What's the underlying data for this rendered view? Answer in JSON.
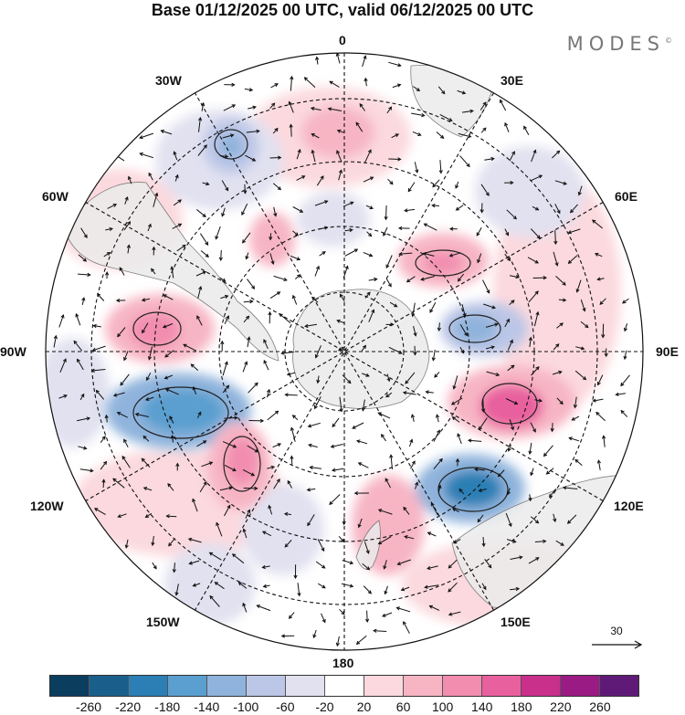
{
  "title": "Base 01/12/2025 00 UTC, valid 06/12/2025 00 UTC",
  "brand": "MODES",
  "brand_mark": "©",
  "longitude_labels": {
    "lon_0": "0",
    "lon_30e": "30E",
    "lon_60e": "60E",
    "lon_90e": "90E",
    "lon_120e": "120E",
    "lon_150e": "150E",
    "lon_180": "180",
    "lon_150w": "150W",
    "lon_120w": "120W",
    "lon_90w": "90W",
    "lon_60w": "60W",
    "lon_30w": "30W"
  },
  "reference_vector": "30",
  "colorbar": {
    "colors": [
      "#0b3d5e",
      "#1a5f8c",
      "#2b7fb5",
      "#5a9fcf",
      "#8fb3dc",
      "#bcc6e6",
      "#e1e1f0",
      "#ffffff",
      "#fbd9de",
      "#f7b5c4",
      "#f28db0",
      "#e8609e",
      "#c8308c",
      "#9a1b84",
      "#5f1a78"
    ],
    "tick_labels": [
      "-260",
      "-220",
      "-180",
      "-140",
      "-100",
      "-60",
      "-20",
      "20",
      "60",
      "100",
      "140",
      "180",
      "220",
      "260"
    ]
  }
}
